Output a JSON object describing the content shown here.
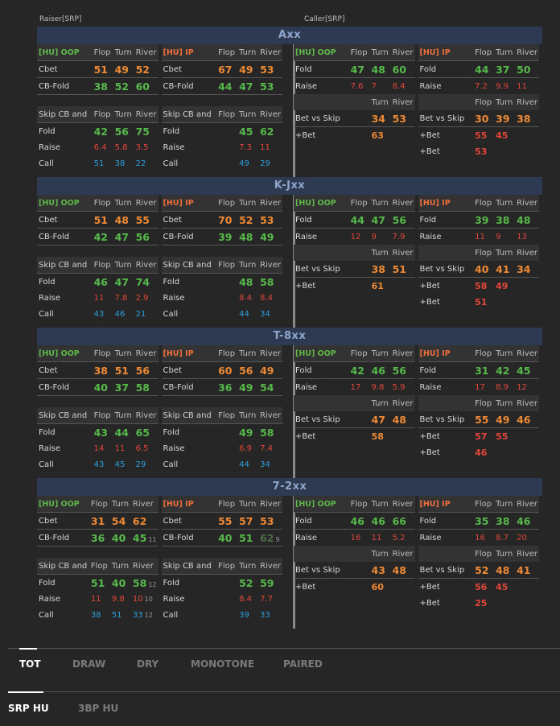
{
  "headers": {
    "raiser": "Raiser[SRP]",
    "caller": "Caller[SRP]"
  },
  "cols": {
    "flop": "Flop",
    "turn": "Turn",
    "river": "River"
  },
  "labels": {
    "hu_oop": "[HU] OOP",
    "hu_ip": "[HU] IP",
    "cbet": "Cbet",
    "cb_fold": "CB-Fold",
    "skip": "Skip CB and",
    "fold": "Fold",
    "raise": "Raise",
    "call": "Call",
    "bet_vs_skip": "Bet vs Skip",
    "plus_bet": "+Bet"
  },
  "sections": [
    {
      "title": "Axx",
      "r_oop": {
        "cbet": [
          "51",
          "49",
          "52"
        ],
        "cbfold": [
          "38",
          "52",
          "60"
        ],
        "fold": [
          "42",
          "56",
          "75"
        ],
        "raise": [
          "6.4",
          "5.8",
          "3.5"
        ],
        "call": [
          "51",
          "38",
          "22"
        ]
      },
      "r_ip": {
        "cbet": [
          "67",
          "49",
          "53"
        ],
        "cbfold": [
          "44",
          "47",
          "53"
        ],
        "fold": [
          "",
          "45",
          "62"
        ],
        "raise": [
          "",
          "7.3",
          "11"
        ],
        "call": [
          "",
          "49",
          "29"
        ]
      },
      "c_oop": {
        "fold": [
          "47",
          "48",
          "60"
        ],
        "raise": [
          "7.6",
          "7",
          "8.4"
        ],
        "bvs": [
          "34",
          "53"
        ],
        "pbet": [
          "63",
          ""
        ]
      },
      "c_ip": {
        "fold": [
          "44",
          "37",
          "50"
        ],
        "raise": [
          "7.2",
          "9.9",
          "11"
        ],
        "bvs": [
          "30",
          "39",
          "38"
        ],
        "pbet1": [
          "55",
          "45"
        ],
        "pbet2": [
          "53"
        ]
      }
    },
    {
      "title": "K-Jxx",
      "r_oop": {
        "cbet": [
          "51",
          "48",
          "55"
        ],
        "cbfold": [
          "42",
          "47",
          "56"
        ],
        "fold": [
          "46",
          "47",
          "74"
        ],
        "raise": [
          "11",
          "7.8",
          "2.9"
        ],
        "call": [
          "43",
          "46",
          "21"
        ]
      },
      "r_ip": {
        "cbet": [
          "70",
          "52",
          "53"
        ],
        "cbfold": [
          "39",
          "48",
          "49"
        ],
        "fold": [
          "",
          "48",
          "58"
        ],
        "raise": [
          "",
          "8.4",
          "8.4"
        ],
        "call": [
          "",
          "44",
          "34"
        ]
      },
      "c_oop": {
        "fold": [
          "44",
          "47",
          "56"
        ],
        "raise": [
          "12",
          "9",
          "7.9"
        ],
        "bvs": [
          "38",
          "51"
        ],
        "pbet": [
          "61",
          ""
        ]
      },
      "c_ip": {
        "fold": [
          "39",
          "38",
          "48"
        ],
        "raise": [
          "11",
          "9",
          "13"
        ],
        "bvs": [
          "40",
          "41",
          "34"
        ],
        "pbet1": [
          "58",
          "49"
        ],
        "pbet2": [
          "51"
        ]
      }
    },
    {
      "title": "T-8xx",
      "r_oop": {
        "cbet": [
          "38",
          "51",
          "56"
        ],
        "cbfold": [
          "40",
          "37",
          "58"
        ],
        "fold": [
          "43",
          "44",
          "65"
        ],
        "raise": [
          "14",
          "11",
          "6.5"
        ],
        "call": [
          "43",
          "45",
          "29"
        ]
      },
      "r_ip": {
        "cbet": [
          "60",
          "56",
          "49"
        ],
        "cbfold": [
          "36",
          "49",
          "54"
        ],
        "fold": [
          "",
          "49",
          "58"
        ],
        "raise": [
          "",
          "6.9",
          "7.4"
        ],
        "call": [
          "",
          "44",
          "34"
        ]
      },
      "c_oop": {
        "fold": [
          "42",
          "46",
          "56"
        ],
        "raise": [
          "17",
          "9.8",
          "5.9"
        ],
        "bvs": [
          "47",
          "48"
        ],
        "pbet": [
          "58",
          ""
        ]
      },
      "c_ip": {
        "fold": [
          "31",
          "42",
          "45"
        ],
        "raise": [
          "17",
          "8.9",
          "12"
        ],
        "bvs": [
          "55",
          "49",
          "46"
        ],
        "pbet1": [
          "57",
          "55"
        ],
        "pbet2": [
          "46"
        ]
      }
    },
    {
      "title": "7-2xx",
      "r_oop": {
        "cbet": [
          "31",
          "54",
          "62"
        ],
        "cbfold": [
          "36",
          "40",
          "45"
        ],
        "cbfold_sub": "11",
        "fold": [
          "51",
          "40",
          "58"
        ],
        "fold_sub": "12",
        "raise": [
          "11",
          "9.8",
          "10"
        ],
        "raise_sub": "10",
        "call": [
          "38",
          "51",
          "33"
        ],
        "call_sub": "12"
      },
      "r_ip": {
        "cbet": [
          "55",
          "57",
          "53"
        ],
        "cbfold": [
          "40",
          "51",
          "62"
        ],
        "cbfold_sub": "9",
        "fold": [
          "",
          "52",
          "59"
        ],
        "raise": [
          "",
          "8.4",
          "7.7"
        ],
        "call": [
          "",
          "39",
          "33"
        ]
      },
      "c_oop": {
        "fold": [
          "46",
          "46",
          "66"
        ],
        "raise": [
          "16",
          "11",
          "5.2"
        ],
        "bvs": [
          "43",
          "48"
        ],
        "pbet": [
          "60",
          ""
        ]
      },
      "c_ip": {
        "fold": [
          "35",
          "38",
          "46"
        ],
        "raise": [
          "16",
          "8.7",
          "20"
        ],
        "bvs": [
          "52",
          "48",
          "41"
        ],
        "pbet1": [
          "56",
          "45"
        ],
        "pbet2": [
          "25"
        ]
      }
    }
  ],
  "board_tabs": [
    "TOT",
    "DRAW",
    "DRY",
    "MONOTONE",
    "PAIRED"
  ],
  "pot_tabs": [
    "SRP HU",
    "3BP HU"
  ],
  "colors": {
    "header_bg": "#2e3a52",
    "orange": "#ee8a35",
    "green": "#57b94b",
    "red": "#e2463a",
    "blue": "#2d9fdc"
  }
}
